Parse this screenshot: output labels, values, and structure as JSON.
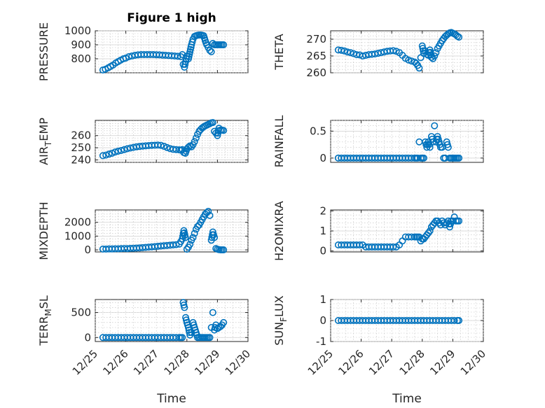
{
  "figure": {
    "title": "Figure 1 high",
    "marker_color": "#0072BD"
  },
  "chart_data": [
    {
      "type": "scatter",
      "id": "pressure",
      "title": "Figure 1 high",
      "ylabel": "PRESSURE",
      "xlabel": "",
      "xlim": [
        25,
        30
      ],
      "ylim": [
        700,
        1000
      ],
      "yticks": [
        800,
        900,
        1000
      ],
      "yticklabels": [
        "800",
        "900",
        "1000"
      ],
      "xticklabels": [],
      "grid": true,
      "x": [
        25.25,
        25.33,
        25.42,
        25.5,
        25.58,
        25.67,
        25.75,
        25.83,
        25.92,
        26.0,
        26.1,
        26.2,
        26.3,
        26.4,
        26.5,
        26.6,
        26.7,
        26.8,
        26.9,
        27.0,
        27.1,
        27.2,
        27.3,
        27.4,
        27.5,
        27.6,
        27.7,
        27.8,
        27.85,
        27.88,
        27.92,
        27.96,
        28.0,
        28.05,
        28.1,
        28.15,
        28.2,
        28.25,
        28.3,
        28.35,
        28.4,
        28.45,
        28.5,
        28.55,
        28.6,
        28.65,
        28.7,
        28.75,
        28.8,
        28.85,
        28.9,
        28.95,
        29.0,
        29.05,
        29.1,
        29.15,
        29.2
      ],
      "y": [
        720,
        725,
        735,
        745,
        755,
        770,
        780,
        790,
        800,
        805,
        815,
        820,
        825,
        828,
        830,
        830,
        830,
        830,
        830,
        829,
        828,
        826,
        825,
        823,
        822,
        820,
        818,
        815,
        830,
        760,
        740,
        780,
        820,
        800,
        850,
        900,
        940,
        960,
        965,
        968,
        970,
        970,
        968,
        965,
        930,
        900,
        880,
        860,
        850,
        910,
        900,
        900,
        900,
        900,
        900,
        900,
        900
      ]
    },
    {
      "type": "scatter",
      "id": "theta",
      "ylabel": "THETA",
      "xlabel": "",
      "xlim": [
        25,
        30
      ],
      "ylim": [
        260,
        272.5
      ],
      "yticks": [
        260,
        265,
        270
      ],
      "yticklabels": [
        "260",
        "265",
        "270"
      ],
      "xticklabels": [],
      "grid": true,
      "x": [
        25.25,
        25.35,
        25.45,
        25.55,
        25.65,
        25.75,
        25.85,
        25.95,
        26.05,
        26.15,
        26.25,
        26.35,
        26.45,
        26.55,
        26.65,
        26.75,
        26.85,
        26.95,
        27.05,
        27.15,
        27.25,
        27.35,
        27.45,
        27.55,
        27.65,
        27.75,
        27.8,
        27.85,
        27.9,
        27.95,
        28.0,
        28.05,
        28.1,
        28.15,
        28.2,
        28.25,
        28.3,
        28.35,
        28.4,
        28.45,
        28.5,
        28.55,
        28.6,
        28.65,
        28.7,
        28.75,
        28.8,
        28.85,
        28.9,
        28.95,
        29.0,
        29.05,
        29.1,
        29.15,
        29.2
      ],
      "y": [
        266.8,
        266.7,
        266.5,
        266.2,
        266.0,
        265.7,
        265.4,
        265.3,
        265.0,
        265.2,
        265.4,
        265.5,
        265.6,
        265.8,
        266.0,
        266.2,
        266.4,
        266.5,
        266.6,
        266.4,
        266.0,
        265.2,
        264.3,
        263.8,
        263.5,
        263.2,
        262.8,
        262.2,
        261.4,
        264.5,
        268.0,
        265.8,
        266.5,
        265.5,
        265.2,
        266.8,
        264.6,
        264.2,
        265.0,
        266.0,
        267.2,
        268.0,
        268.8,
        269.6,
        270.2,
        270.8,
        271.2,
        271.6,
        271.9,
        272.0,
        271.8,
        271.6,
        271.3,
        270.9,
        270.6
      ]
    },
    {
      "type": "scatter",
      "id": "air-temp",
      "ylabel": "AIR_TEMP",
      "xlabel": "",
      "xlim": [
        25,
        30
      ],
      "ylim": [
        238,
        272.5
      ],
      "yticks": [
        240,
        250,
        260
      ],
      "yticklabels": [
        "240",
        "250",
        "260"
      ],
      "xticklabels": [],
      "grid": true,
      "x": [
        25.25,
        25.35,
        25.45,
        25.55,
        25.65,
        25.75,
        25.85,
        25.95,
        26.05,
        26.15,
        26.25,
        26.35,
        26.45,
        26.55,
        26.65,
        26.75,
        26.85,
        26.95,
        27.05,
        27.15,
        27.25,
        27.35,
        27.45,
        27.55,
        27.65,
        27.75,
        27.8,
        27.85,
        27.9,
        27.95,
        28.0,
        28.05,
        28.1,
        28.15,
        28.2,
        28.25,
        28.3,
        28.35,
        28.4,
        28.45,
        28.5,
        28.55,
        28.6,
        28.65,
        28.7,
        28.75,
        28.8,
        28.85,
        28.9,
        28.95,
        29.0,
        29.05,
        29.1,
        29.15,
        29.2
      ],
      "y": [
        243.5,
        244.0,
        244.8,
        245.5,
        246.5,
        247.2,
        247.8,
        248.5,
        249.2,
        249.8,
        250.3,
        250.8,
        251.1,
        251.4,
        251.6,
        251.8,
        252.0,
        252.1,
        252.2,
        252.0,
        251.2,
        250.2,
        249.3,
        248.7,
        248.5,
        248.3,
        248.0,
        248.5,
        246.0,
        245.5,
        249.0,
        250.5,
        251.5,
        250.8,
        252.5,
        255.0,
        258.0,
        261.0,
        263.5,
        265.0,
        266.3,
        267.2,
        268.0,
        268.6,
        269.2,
        269.8,
        270.5,
        270.7,
        263.5,
        262.0,
        260.0,
        266.0,
        264.5,
        264.5,
        264.2
      ]
    },
    {
      "type": "scatter",
      "id": "rainfall",
      "ylabel": "RAINFALL",
      "xlabel": "",
      "xlim": [
        25,
        30
      ],
      "ylim": [
        -0.08,
        0.7
      ],
      "yticks": [
        0,
        0.5
      ],
      "yticklabels": [
        "0",
        "0.5"
      ],
      "xticklabels": [],
      "grid": true,
      "x": [
        25.25,
        25.35,
        25.45,
        25.55,
        25.65,
        25.75,
        25.85,
        25.95,
        26.05,
        26.15,
        26.25,
        26.35,
        26.45,
        26.55,
        26.65,
        26.75,
        26.85,
        26.95,
        27.05,
        27.15,
        27.25,
        27.35,
        27.45,
        27.55,
        27.65,
        27.75,
        27.8,
        27.85,
        27.9,
        27.95,
        28.0,
        28.05,
        28.1,
        28.15,
        28.2,
        28.25,
        28.3,
        28.35,
        28.4,
        28.45,
        28.5,
        28.55,
        28.6,
        28.65,
        28.7,
        28.75,
        28.8,
        28.85,
        28.9,
        28.95,
        29.0,
        29.05,
        29.1,
        29.15,
        29.2
      ],
      "y": [
        0,
        0,
        0,
        0,
        0,
        0,
        0,
        0,
        0,
        0,
        0,
        0,
        0,
        0,
        0,
        0,
        0,
        0,
        0,
        0,
        0,
        0,
        0,
        0,
        0,
        0,
        0,
        0,
        0.3,
        0,
        0,
        0,
        0.3,
        0.2,
        0.3,
        0.2,
        0.4,
        0.3,
        0.6,
        0.3,
        0.4,
        0.3,
        0.2,
        0.2,
        0,
        0,
        0.3,
        0.2,
        0,
        0,
        0,
        0,
        0,
        0,
        0
      ]
    },
    {
      "type": "scatter",
      "id": "mixdepth",
      "ylabel": "MIXDEPTH",
      "xlabel": "",
      "xlim": [
        25,
        30
      ],
      "ylim": [
        -150,
        2900
      ],
      "yticks": [
        0,
        1000,
        2000
      ],
      "yticklabels": [
        "0",
        "1000",
        "2000"
      ],
      "xticklabels": [],
      "grid": true,
      "x": [
        25.25,
        25.35,
        25.45,
        25.55,
        25.65,
        25.75,
        25.85,
        25.95,
        26.05,
        26.15,
        26.25,
        26.35,
        26.45,
        26.55,
        26.65,
        26.75,
        26.85,
        26.95,
        27.05,
        27.15,
        27.25,
        27.35,
        27.45,
        27.55,
        27.65,
        27.75,
        27.8,
        27.85,
        27.9,
        27.95,
        28.0,
        28.05,
        28.1,
        28.15,
        28.2,
        28.25,
        28.3,
        28.35,
        28.4,
        28.45,
        28.5,
        28.55,
        28.6,
        28.65,
        28.7,
        28.75,
        28.8,
        28.85,
        28.9,
        28.95,
        29.0,
        29.05,
        29.1,
        29.15,
        29.2
      ],
      "y": [
        60,
        60,
        70,
        70,
        80,
        80,
        90,
        100,
        90,
        110,
        120,
        130,
        140,
        160,
        180,
        200,
        220,
        240,
        260,
        280,
        300,
        320,
        340,
        360,
        380,
        420,
        600,
        800,
        1400,
        900,
        50,
        200,
        400,
        700,
        900,
        1200,
        1500,
        1700,
        1800,
        2000,
        2200,
        2400,
        2600,
        2700,
        2800,
        2500,
        700,
        1300,
        900,
        100,
        50,
        20,
        0,
        0,
        0
      ]
    },
    {
      "type": "scatter",
      "id": "h2omixra",
      "ylabel": "H2OMIXRA",
      "xlabel": "",
      "xlim": [
        25,
        30
      ],
      "ylim": [
        -0.05,
        2.05
      ],
      "yticks": [
        0,
        1,
        2
      ],
      "yticklabels": [
        "0",
        "1",
        "2"
      ],
      "xticklabels": [],
      "grid": true,
      "x": [
        25.25,
        25.35,
        25.45,
        25.55,
        25.65,
        25.75,
        25.85,
        25.95,
        26.05,
        26.15,
        26.25,
        26.35,
        26.45,
        26.55,
        26.65,
        26.75,
        26.85,
        26.95,
        27.05,
        27.15,
        27.25,
        27.35,
        27.45,
        27.55,
        27.65,
        27.75,
        27.8,
        27.85,
        27.9,
        27.95,
        28.0,
        28.05,
        28.1,
        28.15,
        28.2,
        28.25,
        28.3,
        28.35,
        28.4,
        28.45,
        28.5,
        28.55,
        28.6,
        28.65,
        28.7,
        28.75,
        28.8,
        28.85,
        28.9,
        28.95,
        29.0,
        29.05,
        29.1,
        29.15,
        29.2
      ],
      "y": [
        0.3,
        0.3,
        0.3,
        0.3,
        0.3,
        0.3,
        0.3,
        0.3,
        0.3,
        0.2,
        0.2,
        0.2,
        0.2,
        0.2,
        0.2,
        0.2,
        0.2,
        0.2,
        0.2,
        0.2,
        0.3,
        0.5,
        0.7,
        0.7,
        0.7,
        0.7,
        0.7,
        0.7,
        0.7,
        0.5,
        0.6,
        0.6,
        0.7,
        0.8,
        0.9,
        1.0,
        1.2,
        1.3,
        1.4,
        1.5,
        1.5,
        1.4,
        1.3,
        1.5,
        1.4,
        1.3,
        1.4,
        1.5,
        1.2,
        1.5,
        1.5,
        1.7,
        1.5,
        1.5,
        1.5
      ]
    },
    {
      "type": "scatter",
      "id": "terr-msl",
      "ylabel": "TERR_MSL",
      "xlabel": "Time",
      "xlim": [
        25,
        30
      ],
      "ylim": [
        -80,
        760
      ],
      "yticks": [
        0,
        500
      ],
      "yticklabels": [
        "0",
        "500"
      ],
      "xticks": [
        25,
        26,
        27,
        28,
        29,
        30
      ],
      "xticklabels": [
        "12/25",
        "12/26",
        "12/27",
        "12/28",
        "12/29",
        "12/30"
      ],
      "grid": true,
      "x": [
        25.25,
        25.35,
        25.45,
        25.55,
        25.65,
        25.75,
        25.85,
        25.95,
        26.05,
        26.15,
        26.25,
        26.35,
        26.45,
        26.55,
        26.65,
        26.75,
        26.85,
        26.95,
        27.05,
        27.15,
        27.25,
        27.35,
        27.45,
        27.55,
        27.65,
        27.75,
        27.8,
        27.85,
        27.88,
        27.92,
        27.96,
        28.0,
        28.05,
        28.1,
        28.15,
        28.2,
        28.25,
        28.3,
        28.35,
        28.4,
        28.45,
        28.5,
        28.55,
        28.6,
        28.65,
        28.7,
        28.75,
        28.8,
        28.85,
        28.9,
        28.95,
        29.0,
        29.05,
        29.1,
        29.15,
        29.2
      ],
      "y": [
        0,
        0,
        0,
        0,
        0,
        0,
        0,
        0,
        0,
        0,
        0,
        0,
        0,
        0,
        0,
        0,
        0,
        0,
        0,
        0,
        0,
        0,
        0,
        0,
        0,
        0,
        0,
        0,
        700,
        600,
        400,
        300,
        200,
        50,
        100,
        300,
        200,
        100,
        0,
        0,
        0,
        0,
        0,
        0,
        0,
        0,
        0,
        200,
        500,
        150,
        250,
        180,
        200,
        220,
        250,
        300
      ]
    },
    {
      "type": "scatter",
      "id": "sun-flux",
      "ylabel": "SUN_FLUX",
      "xlabel": "Time",
      "xlim": [
        25,
        30
      ],
      "ylim": [
        -1,
        1
      ],
      "yticks": [
        -1,
        0,
        1
      ],
      "yticklabels": [
        "-1",
        "0",
        "1"
      ],
      "xticks": [
        25,
        26,
        27,
        28,
        29,
        30
      ],
      "xticklabels": [
        "12/25",
        "12/26",
        "12/27",
        "12/28",
        "12/29",
        "12/30"
      ],
      "grid": true,
      "x": [
        25.25,
        25.35,
        25.45,
        25.55,
        25.65,
        25.75,
        25.85,
        25.95,
        26.05,
        26.15,
        26.25,
        26.35,
        26.45,
        26.55,
        26.65,
        26.75,
        26.85,
        26.95,
        27.05,
        27.15,
        27.25,
        27.35,
        27.45,
        27.55,
        27.65,
        27.75,
        27.85,
        27.95,
        28.05,
        28.15,
        28.25,
        28.35,
        28.45,
        28.55,
        28.65,
        28.75,
        28.85,
        28.95,
        29.05,
        29.15,
        29.2
      ],
      "y": [
        0,
        0,
        0,
        0,
        0,
        0,
        0,
        0,
        0,
        0,
        0,
        0,
        0,
        0,
        0,
        0,
        0,
        0,
        0,
        0,
        0,
        0,
        0,
        0,
        0,
        0,
        0,
        0,
        0,
        0,
        0,
        0,
        0,
        0,
        0,
        0,
        0,
        0,
        0,
        0,
        0
      ]
    }
  ]
}
